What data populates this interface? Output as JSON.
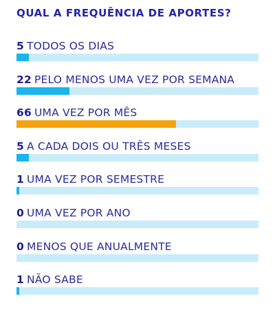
{
  "chart_data": {
    "type": "bar",
    "orientation": "horizontal",
    "title": "QUAL A FREQUÊNCIA DE APORTES?",
    "categories": [
      "TODOS OS DIAS",
      "PELO MENOS UMA VEZ POR SEMANA",
      "UMA VEZ POR MÊS",
      "A CADA DOIS OU TRÊS MESES",
      "UMA VEZ POR SEMESTRE",
      "UMA VEZ POR ANO",
      "MENOS QUE ANUALMENTE",
      "NÃO SABE"
    ],
    "values": [
      5,
      22,
      66,
      5,
      1,
      0,
      0,
      1
    ],
    "xlim": [
      0,
      100
    ],
    "highlight_index": 2,
    "colors": {
      "bar": "#1ab4ef",
      "highlight": "#f4a30e",
      "track": "#c9ecfb",
      "text": "#2b2b9c"
    },
    "grid": false,
    "legend": "none"
  }
}
